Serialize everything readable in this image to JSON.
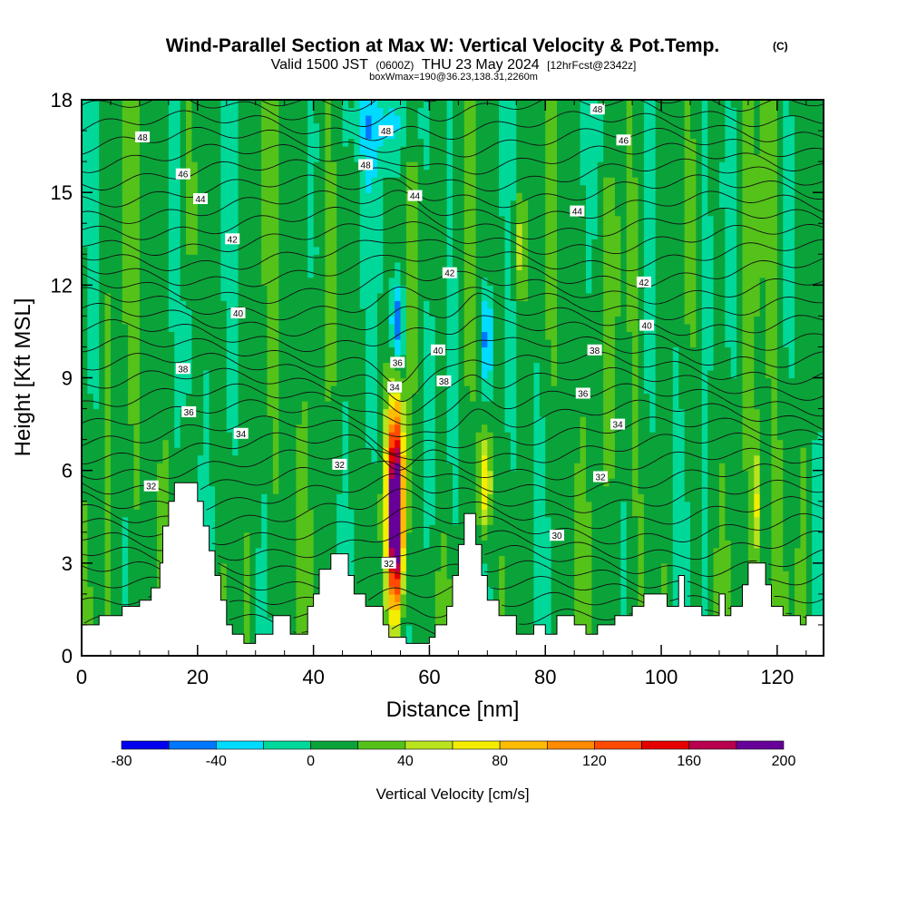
{
  "header": {
    "title": "Wind-Parallel Section at Max W: Vertical Velocity & Pot.Temp.",
    "copyright": "(C)",
    "valid_prefix": "Valid 1500 JST",
    "valid_utc": "(0600Z)",
    "valid_date": "THU 23 May 2024",
    "forecast": "[12hrFcst@2342z]",
    "box_info": "boxWmax=190@36.23,138.31,2260m"
  },
  "chart_data": {
    "type": "heatmap",
    "xlabel": "Distance [nm]",
    "ylabel": "Height [Kft MSL]",
    "xlim": [
      0,
      128
    ],
    "ylim": [
      0,
      18
    ],
    "x_ticks": [
      "0",
      "20",
      "40",
      "60",
      "80",
      "100",
      "120"
    ],
    "y_ticks": [
      "0",
      "3",
      "6",
      "9",
      "12",
      "15",
      "18"
    ],
    "terrain_kft": [
      [
        0,
        1.0
      ],
      [
        3,
        1.0
      ],
      [
        3,
        1.3
      ],
      [
        7,
        1.3
      ],
      [
        7,
        1.6
      ],
      [
        10,
        1.6
      ],
      [
        10,
        1.8
      ],
      [
        12,
        1.8
      ],
      [
        12,
        2.2
      ],
      [
        13.5,
        2.2
      ],
      [
        13.5,
        3.0
      ],
      [
        14,
        3.0
      ],
      [
        14,
        4.2
      ],
      [
        15,
        4.2
      ],
      [
        15,
        5.0
      ],
      [
        16,
        5.0
      ],
      [
        16,
        5.6
      ],
      [
        20,
        5.6
      ],
      [
        20,
        5.0
      ],
      [
        21,
        5.0
      ],
      [
        21,
        4.2
      ],
      [
        22,
        4.2
      ],
      [
        22,
        3.4
      ],
      [
        23,
        3.4
      ],
      [
        23,
        2.6
      ],
      [
        24,
        2.6
      ],
      [
        24,
        1.8
      ],
      [
        25,
        1.8
      ],
      [
        25,
        1.0
      ],
      [
        26,
        1.0
      ],
      [
        26,
        0.7
      ],
      [
        28,
        0.7
      ],
      [
        28,
        0.4
      ],
      [
        30,
        0.4
      ],
      [
        30,
        0.7
      ],
      [
        33,
        0.7
      ],
      [
        33,
        1.3
      ],
      [
        36,
        1.3
      ],
      [
        36,
        0.7
      ],
      [
        39,
        0.7
      ],
      [
        39,
        1.6
      ],
      [
        40,
        1.6
      ],
      [
        40,
        2.0
      ],
      [
        41,
        2.0
      ],
      [
        41,
        2.8
      ],
      [
        43,
        2.8
      ],
      [
        43,
        3.3
      ],
      [
        46,
        3.3
      ],
      [
        46,
        2.6
      ],
      [
        47,
        2.6
      ],
      [
        47,
        2.0
      ],
      [
        49,
        2.0
      ],
      [
        49,
        1.6
      ],
      [
        52,
        1.6
      ],
      [
        52,
        1.0
      ],
      [
        53,
        1.0
      ],
      [
        53,
        0.6
      ],
      [
        56,
        0.6
      ],
      [
        56,
        0.4
      ],
      [
        60,
        0.4
      ],
      [
        60,
        0.6
      ],
      [
        61,
        0.6
      ],
      [
        61,
        1.0
      ],
      [
        63,
        1.0
      ],
      [
        63,
        1.6
      ],
      [
        64,
        1.6
      ],
      [
        64,
        2.6
      ],
      [
        65,
        2.6
      ],
      [
        65,
        3.6
      ],
      [
        66,
        3.6
      ],
      [
        66,
        4.6
      ],
      [
        68,
        4.6
      ],
      [
        68,
        3.6
      ],
      [
        69,
        3.6
      ],
      [
        69,
        2.6
      ],
      [
        70,
        2.6
      ],
      [
        70,
        1.8
      ],
      [
        72,
        1.8
      ],
      [
        72,
        1.3
      ],
      [
        75,
        1.3
      ],
      [
        75,
        0.7
      ],
      [
        78,
        0.7
      ],
      [
        78,
        1.0
      ],
      [
        80,
        1.0
      ],
      [
        80,
        0.7
      ],
      [
        82,
        0.7
      ],
      [
        82,
        1.3
      ],
      [
        85,
        1.3
      ],
      [
        85,
        1.0
      ],
      [
        87,
        1.0
      ],
      [
        87,
        0.7
      ],
      [
        89,
        0.7
      ],
      [
        89,
        1.0
      ],
      [
        92,
        1.0
      ],
      [
        92,
        1.3
      ],
      [
        95,
        1.3
      ],
      [
        95,
        1.6
      ],
      [
        97,
        1.6
      ],
      [
        97,
        2.0
      ],
      [
        101,
        2.0
      ],
      [
        101,
        1.6
      ],
      [
        103,
        1.6
      ],
      [
        103,
        2.6
      ],
      [
        104,
        2.6
      ],
      [
        104,
        1.6
      ],
      [
        107,
        1.6
      ],
      [
        107,
        1.3
      ],
      [
        110,
        1.3
      ],
      [
        110,
        2.0
      ],
      [
        111,
        2.0
      ],
      [
        111,
        1.3
      ],
      [
        112,
        1.3
      ],
      [
        112,
        1.6
      ],
      [
        114,
        1.6
      ],
      [
        114,
        2.3
      ],
      [
        115,
        2.3
      ],
      [
        115,
        3.0
      ],
      [
        118,
        3.0
      ],
      [
        118,
        2.3
      ],
      [
        119,
        2.3
      ],
      [
        119,
        1.6
      ],
      [
        121,
        1.6
      ],
      [
        121,
        1.3
      ],
      [
        124,
        1.3
      ],
      [
        124,
        1.0
      ],
      [
        125,
        1.0
      ],
      [
        125,
        1.3
      ],
      [
        128,
        1.3
      ]
    ],
    "vertical_velocity_features": [
      {
        "x": 54.2,
        "y": 4.5,
        "sx": 0.9,
        "sy": 2.2,
        "w": 190
      },
      {
        "x": 54.2,
        "y": 5.5,
        "sx": 1.4,
        "sy": 2.6,
        "w": 60
      },
      {
        "x": 69.5,
        "y": 5.6,
        "sx": 0.8,
        "sy": 1.2,
        "w": 80
      },
      {
        "x": 75.5,
        "y": 13.2,
        "sx": 1.0,
        "sy": 1.3,
        "w": 50
      },
      {
        "x": 116.5,
        "y": 4.8,
        "sx": 0.6,
        "sy": 1.5,
        "w": 55
      },
      {
        "x": 54.5,
        "y": 10.7,
        "sx": 0.9,
        "sy": 1.0,
        "w": -70
      },
      {
        "x": 70.0,
        "y": 10.3,
        "sx": 0.7,
        "sy": 1.2,
        "w": -65
      },
      {
        "x": 52.0,
        "y": 17.2,
        "sx": 5.0,
        "sy": 1.0,
        "w": -30
      },
      {
        "x": 62.0,
        "y": 6.5,
        "sx": 3.0,
        "sy": 3.0,
        "w": -20
      },
      {
        "x": 18.5,
        "y": 10.2,
        "sx": 0.8,
        "sy": 1.5,
        "w": -30
      },
      {
        "x": 90.0,
        "y": 17.0,
        "sx": 2.5,
        "sy": 1.3,
        "w": -25
      }
    ],
    "theta_contour_labels": [
      {
        "v": "48",
        "x": 10.5,
        "y": 16.8
      },
      {
        "v": "48",
        "x": 52.5,
        "y": 17.0
      },
      {
        "v": "48",
        "x": 49.0,
        "y": 15.9
      },
      {
        "v": "48",
        "x": 89.0,
        "y": 17.7
      },
      {
        "v": "46",
        "x": 17.5,
        "y": 15.6
      },
      {
        "v": "46",
        "x": 93.5,
        "y": 16.7
      },
      {
        "v": "44",
        "x": 20.5,
        "y": 14.8
      },
      {
        "v": "44",
        "x": 57.5,
        "y": 14.9
      },
      {
        "v": "44",
        "x": 85.5,
        "y": 14.4
      },
      {
        "v": "42",
        "x": 26.0,
        "y": 13.5
      },
      {
        "v": "42",
        "x": 63.5,
        "y": 12.4
      },
      {
        "v": "42",
        "x": 97.0,
        "y": 12.1
      },
      {
        "v": "40",
        "x": 27.0,
        "y": 11.1
      },
      {
        "v": "40",
        "x": 61.5,
        "y": 9.9
      },
      {
        "v": "40",
        "x": 97.5,
        "y": 10.7
      },
      {
        "v": "38",
        "x": 17.5,
        "y": 9.3
      },
      {
        "v": "38",
        "x": 62.5,
        "y": 8.9
      },
      {
        "v": "38",
        "x": 88.5,
        "y": 9.9
      },
      {
        "v": "36",
        "x": 18.5,
        "y": 7.9
      },
      {
        "v": "36",
        "x": 54.5,
        "y": 9.5
      },
      {
        "v": "36",
        "x": 86.5,
        "y": 8.5
      },
      {
        "v": "34",
        "x": 27.5,
        "y": 7.2
      },
      {
        "v": "34",
        "x": 54.0,
        "y": 8.7
      },
      {
        "v": "34",
        "x": 92.5,
        "y": 7.5
      },
      {
        "v": "32",
        "x": 12.0,
        "y": 5.5
      },
      {
        "v": "32",
        "x": 44.5,
        "y": 6.2
      },
      {
        "v": "32",
        "x": 53.0,
        "y": 3.0
      },
      {
        "v": "32",
        "x": 89.5,
        "y": 5.8
      },
      {
        "v": "30",
        "x": 82.0,
        "y": 3.9
      }
    ]
  },
  "colorbar": {
    "label": "Vertical Velocity [cm/s]",
    "tick_labels": [
      "-80",
      "-40",
      "0",
      "40",
      "80",
      "120",
      "160",
      "200"
    ],
    "levels": [
      -80,
      -60,
      -40,
      -20,
      0,
      20,
      40,
      60,
      80,
      100,
      120,
      140,
      160,
      180,
      200
    ],
    "colors": [
      "#0000ee",
      "#0077ff",
      "#00dbff",
      "#00d89a",
      "#0aa33a",
      "#55c21a",
      "#b9e31e",
      "#f4ed00",
      "#ffbb00",
      "#ff8a00",
      "#ff4a00",
      "#e50000",
      "#b8004f",
      "#660099"
    ]
  }
}
